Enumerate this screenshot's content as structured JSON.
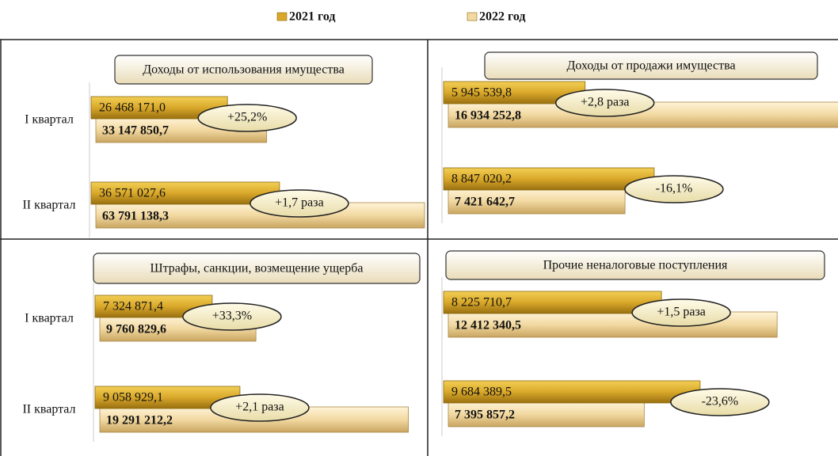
{
  "legend": [
    {
      "name": "2021 год",
      "color": "#d9a82a"
    },
    {
      "name": "2022 год",
      "color": "#f2d9a2"
    }
  ],
  "chart_data": [
    {
      "type": "bar",
      "title": "Доходы от использования имущества",
      "categories": [
        "I квартал",
        "II квартал"
      ],
      "series": [
        {
          "values": [
            26468171.0,
            36571027.6
          ],
          "value_labels": [
            "26 468 171,0",
            "36 571 027,6"
          ]
        },
        {
          "values": [
            33147850.7,
            63791138.3
          ],
          "value_labels": [
            "33 147 850,7",
            "63 791 138,3"
          ]
        }
      ],
      "annotations": [
        "+25,2%",
        "+1,7 раза"
      ],
      "xlim": [
        0,
        64100000
      ]
    },
    {
      "type": "bar",
      "title": "Доходы от продажи имущества",
      "series": [
        {
          "values": [
            5945539.8,
            8847020.2
          ],
          "value_labels": [
            "5 945 539,8",
            "8 847 020,2"
          ]
        },
        {
          "values": [
            16934252.8,
            7421642.7
          ],
          "value_labels": [
            "16 934 252,8",
            "7 421 642,7"
          ]
        }
      ],
      "annotations": [
        "+2,8 раза",
        "-16,1%"
      ],
      "xlim": [
        0,
        16300000
      ]
    },
    {
      "type": "bar",
      "title": "Штрафы, санкции, возмещение ущерба",
      "categories": [
        "I квартал",
        "II квартал"
      ],
      "series": [
        {
          "values": [
            7324871.4,
            9058929.1
          ],
          "value_labels": [
            "7 324 871,4",
            "9 058 929,1"
          ]
        },
        {
          "values": [
            9760829.6,
            19291212.2
          ],
          "value_labels": [
            "9 760 829,6",
            "19 291 212,2"
          ]
        }
      ],
      "annotations": [
        "+33,3%",
        "+2,1 раза"
      ],
      "xlim": [
        0,
        20400000
      ]
    },
    {
      "type": "bar",
      "title": "Прочие неналоговые поступления",
      "series": [
        {
          "values": [
            8225710.7,
            9684389.5
          ],
          "value_labels": [
            "8 225 710,7",
            "9 684 389,5"
          ]
        },
        {
          "values": [
            12412340.5,
            7395857.2
          ],
          "value_labels": [
            "12 412 340,5",
            "7 395 857,2"
          ]
        }
      ],
      "annotations": [
        "+1,5 раза",
        "-23,6%"
      ],
      "xlim": [
        0,
        14650000
      ]
    }
  ]
}
